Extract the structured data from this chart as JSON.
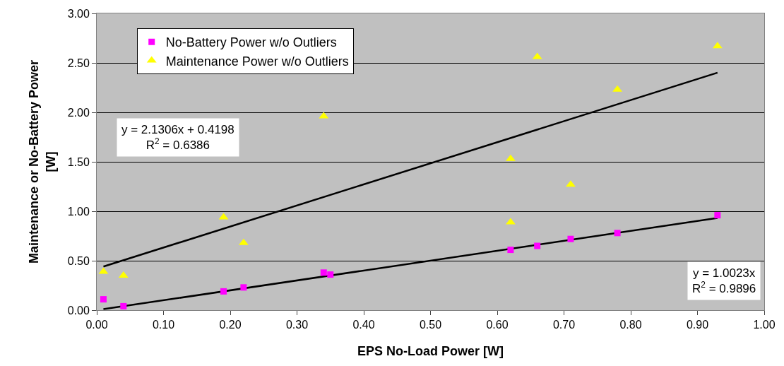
{
  "chart_data": {
    "type": "scatter",
    "xlabel": "EPS No-Load Power [W]",
    "ylabel": "Maintenance or No-Battery Power\n[W]",
    "xlim": [
      0,
      1
    ],
    "xticks": [
      {
        "value": 0,
        "label": "0.00"
      },
      {
        "value": 0.1,
        "label": "0.10"
      },
      {
        "value": 0.2,
        "label": "0.20"
      },
      {
        "value": 0.3,
        "label": "0.30"
      },
      {
        "value": 0.4,
        "label": "0.40"
      },
      {
        "value": 0.5,
        "label": "0.50"
      },
      {
        "value": 0.6,
        "label": "0.60"
      },
      {
        "value": 0.7,
        "label": "0.70"
      },
      {
        "value": 0.8,
        "label": "0.80"
      },
      {
        "value": 0.9,
        "label": "0.90"
      },
      {
        "value": 1,
        "label": "1.00"
      }
    ],
    "ylim": [
      0,
      3
    ],
    "yticks": [
      {
        "value": 0,
        "label": "0.00"
      },
      {
        "value": 0.5,
        "label": "0.50"
      },
      {
        "value": 1,
        "label": "1.00"
      },
      {
        "value": 1.5,
        "label": "1.50"
      },
      {
        "value": 2,
        "label": "2.00"
      },
      {
        "value": 2.5,
        "label": "2.50"
      },
      {
        "value": 3,
        "label": "3.00"
      }
    ],
    "grid": "y",
    "legend": "top left",
    "series": [
      {
        "name": "No-Battery Power w/o Outliers",
        "color": "#ff00ff",
        "marker": "square",
        "x": [
          0.01,
          0.04,
          0.19,
          0.22,
          0.34,
          0.35,
          0.62,
          0.66,
          0.71,
          0.78,
          0.93
        ],
        "values": [
          0.11,
          0.04,
          0.19,
          0.23,
          0.38,
          0.36,
          0.61,
          0.65,
          0.72,
          0.78,
          0.96
        ]
      },
      {
        "name": "Maintenance Power w/o Outliers",
        "color": "#ffff00",
        "marker": "triangle",
        "x": [
          0.01,
          0.04,
          0.19,
          0.22,
          0.34,
          0.62,
          0.62,
          0.66,
          0.71,
          0.78,
          0.93
        ],
        "values": [
          0.39,
          0.35,
          0.94,
          0.68,
          1.96,
          1.53,
          0.89,
          2.56,
          1.27,
          2.23,
          2.67
        ]
      },
      {
        "type": "line",
        "color": "#000000",
        "x": [
          0.01,
          0.93
        ],
        "values": [
          0.441,
          2.401
        ]
      },
      {
        "type": "line",
        "color": "#000000",
        "x": [
          0.01,
          0.93
        ],
        "values": [
          0.01,
          0.932
        ]
      }
    ],
    "annotations": [
      "y = 2.1306x + 0.4198\nR$^{2}$ = 0.6386",
      "y = 1.0023x\nR$^{2}$ = 0.9896"
    ]
  }
}
